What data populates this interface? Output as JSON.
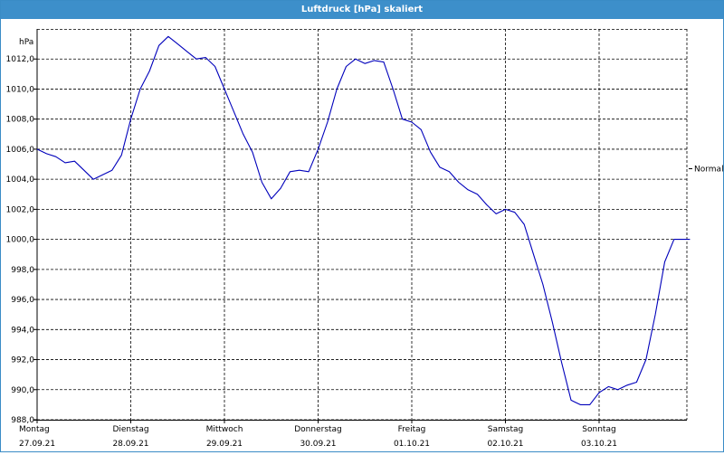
{
  "window": {
    "title": "Luftdruck [hPa] skaliert"
  },
  "chart_data": {
    "type": "line",
    "title": "Luftdruck [hPa] skaliert",
    "ylabel": "hPa",
    "ylim": [
      988.0,
      1014.0
    ],
    "yticks": [
      1012.0,
      1010.0,
      1008.0,
      1006.0,
      1004.0,
      1002.0,
      1000.0,
      998.0,
      996.0,
      994.0,
      992.0,
      990.0,
      988.0
    ],
    "ytick_labels": [
      "1012,0",
      "1010,0",
      "1008,0",
      "1006,0",
      "1004,0",
      "1002,0",
      "1000,0",
      "998,0",
      "996,0",
      "994,0",
      "992,0",
      "990,0",
      "988,0"
    ],
    "xlim": [
      0,
      7
    ],
    "x_unit": "days since Montag 27.09.21 00:00",
    "x_ticks": [
      {
        "x": 0,
        "day": "Montag",
        "date": "27.09.21"
      },
      {
        "x": 1,
        "day": "Dienstag",
        "date": "28.09.21"
      },
      {
        "x": 2,
        "day": "Mittwoch",
        "date": "29.09.21"
      },
      {
        "x": 3,
        "day": "Donnerstag",
        "date": "30.09.21"
      },
      {
        "x": 4,
        "day": "Freitag",
        "date": "01.10.21"
      },
      {
        "x": 5,
        "day": "Samstag",
        "date": "02.10.21"
      },
      {
        "x": 6,
        "day": "Sonntag",
        "date": "03.10.21"
      }
    ],
    "grid": true,
    "reference_line": {
      "label": "Normal",
      "y": 1004.7
    },
    "series": [
      {
        "name": "",
        "color": "#0000bb",
        "x": [
          0.0,
          0.1,
          0.2,
          0.3,
          0.4,
          0.5,
          0.6,
          0.7,
          0.8,
          0.9,
          1.0,
          1.1,
          1.2,
          1.3,
          1.4,
          1.5,
          1.6,
          1.7,
          1.8,
          1.9,
          2.0,
          2.1,
          2.2,
          2.3,
          2.4,
          2.5,
          2.6,
          2.7,
          2.8,
          2.9,
          3.0,
          3.1,
          3.2,
          3.3,
          3.4,
          3.5,
          3.6,
          3.7,
          3.8,
          3.9,
          4.0,
          4.1,
          4.2,
          4.3,
          4.4,
          4.5,
          4.6,
          4.7,
          4.8,
          4.9,
          5.0,
          5.1,
          5.2,
          5.3,
          5.4,
          5.5,
          5.6,
          5.7,
          5.8,
          5.9,
          6.0,
          6.1,
          6.2,
          6.3,
          6.4,
          6.5,
          6.6,
          6.7,
          6.8,
          6.9,
          6.97
        ],
        "values": [
          1006.0,
          1005.7,
          1005.5,
          1005.1,
          1005.2,
          1004.6,
          1004.0,
          1004.3,
          1004.6,
          1005.6,
          1008.0,
          1010.0,
          1011.2,
          1012.9,
          1013.5,
          1013.0,
          1012.5,
          1012.0,
          1012.1,
          1011.5,
          1010.0,
          1008.5,
          1007.0,
          1005.8,
          1003.8,
          1002.7,
          1003.4,
          1004.5,
          1004.6,
          1004.5,
          1006.0,
          1007.8,
          1010.0,
          1011.5,
          1012.0,
          1011.7,
          1011.9,
          1011.8,
          1010.0,
          1008.0,
          1007.8,
          1007.3,
          1005.8,
          1004.8,
          1004.5,
          1003.8,
          1003.3,
          1003.0,
          1002.3,
          1001.7,
          1002.0,
          1001.8,
          1001.0,
          999.0,
          997.0,
          994.5,
          991.8,
          989.3,
          989.0,
          989.0,
          989.8,
          990.2,
          990.0,
          990.3,
          990.5,
          992.0,
          995.0,
          998.5,
          1000.0,
          1000.0,
          1000.0
        ]
      }
    ]
  }
}
